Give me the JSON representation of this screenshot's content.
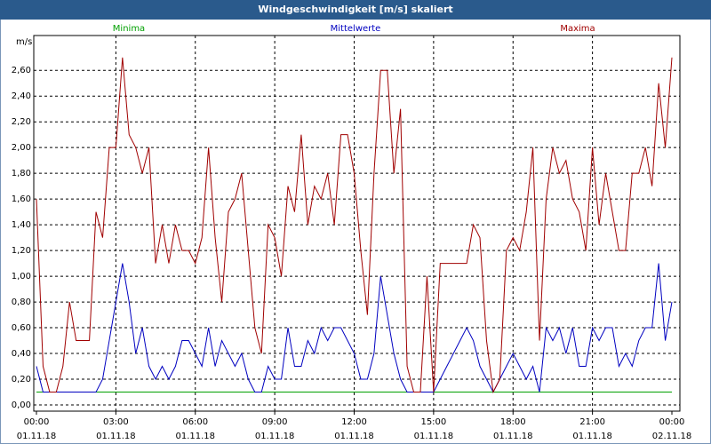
{
  "chart_data": {
    "type": "line",
    "title": "Windgeschwindigkeit [m/s] skaliert",
    "y_unit": "m/s",
    "x": [
      0,
      0.25,
      0.5,
      0.75,
      1,
      1.25,
      1.5,
      1.75,
      2,
      2.25,
      2.5,
      2.75,
      3,
      3.25,
      3.5,
      3.75,
      4,
      4.25,
      4.5,
      4.75,
      5,
      5.25,
      5.5,
      5.75,
      6,
      6.25,
      6.5,
      6.75,
      7,
      7.25,
      7.5,
      7.75,
      8,
      8.25,
      8.5,
      8.75,
      9,
      9.25,
      9.5,
      9.75,
      10,
      10.25,
      10.5,
      10.75,
      11,
      11.25,
      11.5,
      11.75,
      12,
      12.25,
      12.5,
      12.75,
      13,
      13.25,
      13.5,
      13.75,
      14,
      14.25,
      14.5,
      14.75,
      15,
      15.25,
      15.5,
      15.75,
      16,
      16.25,
      16.5,
      16.75,
      17,
      17.25,
      17.5,
      17.75,
      18,
      18.25,
      18.5,
      18.75,
      19,
      19.25,
      19.5,
      19.75,
      20,
      20.25,
      20.5,
      20.75,
      21,
      21.25,
      21.5,
      21.75,
      22,
      22.25,
      22.5,
      22.75,
      23,
      23.25,
      23.5,
      23.75,
      24
    ],
    "series": [
      {
        "name": "Minima",
        "color": "#00a000",
        "values": [
          0.1,
          0.1,
          0.1,
          0.1,
          0.1,
          0.1,
          0.1,
          0.1,
          0.1,
          0.1,
          0.1,
          0.1,
          0.1,
          0.1,
          0.1,
          0.1,
          0.1,
          0.1,
          0.1,
          0.1,
          0.1,
          0.1,
          0.1,
          0.1,
          0.1,
          0.1,
          0.1,
          0.1,
          0.1,
          0.1,
          0.1,
          0.1,
          0.1,
          0.1,
          0.1,
          0.1,
          0.1,
          0.1,
          0.1,
          0.1,
          0.1,
          0.1,
          0.1,
          0.1,
          0.1,
          0.1,
          0.1,
          0.1,
          0.1,
          0.1,
          0.1,
          0.1,
          0.1,
          0.1,
          0.1,
          0.1,
          0.1,
          0.1,
          0.1,
          0.1,
          0.1,
          0.1,
          0.1,
          0.1,
          0.1,
          0.1,
          0.1,
          0.1,
          0.1,
          0.1,
          0.1,
          0.1,
          0.1,
          0.1,
          0.1,
          0.1,
          0.1,
          0.1,
          0.1,
          0.1,
          0.1,
          0.1,
          0.1,
          0.1,
          0.1,
          0.1,
          0.1,
          0.1,
          0.1,
          0.1,
          0.1,
          0.1,
          0.1,
          0.1,
          0.1,
          0.1,
          0.1
        ]
      },
      {
        "name": "Mittelwerte",
        "color": "#0000c0",
        "values": [
          0.3,
          0.1,
          0.1,
          0.1,
          0.1,
          0.1,
          0.1,
          0.1,
          0.1,
          0.1,
          0.2,
          0.5,
          0.8,
          1.1,
          0.8,
          0.4,
          0.6,
          0.3,
          0.2,
          0.3,
          0.2,
          0.3,
          0.5,
          0.5,
          0.4,
          0.3,
          0.6,
          0.3,
          0.5,
          0.4,
          0.3,
          0.4,
          0.2,
          0.1,
          0.1,
          0.3,
          0.2,
          0.2,
          0.6,
          0.3,
          0.3,
          0.5,
          0.4,
          0.6,
          0.5,
          0.6,
          0.6,
          0.5,
          0.4,
          0.2,
          0.2,
          0.4,
          1.0,
          0.7,
          0.4,
          0.2,
          0.1,
          0.1,
          0.1,
          0.1,
          0.1,
          0.2,
          0.3,
          0.4,
          0.5,
          0.6,
          0.5,
          0.3,
          0.2,
          0.1,
          0.2,
          0.3,
          0.4,
          0.3,
          0.2,
          0.3,
          0.1,
          0.6,
          0.5,
          0.6,
          0.4,
          0.6,
          0.3,
          0.3,
          0.6,
          0.5,
          0.6,
          0.6,
          0.3,
          0.4,
          0.3,
          0.5,
          0.6,
          0.6,
          1.1,
          0.5,
          0.8
        ]
      },
      {
        "name": "Maxima",
        "color": "#a00000",
        "values": [
          1.6,
          0.3,
          0.1,
          0.1,
          0.3,
          0.8,
          0.5,
          0.5,
          0.5,
          1.5,
          1.3,
          2.0,
          2.0,
          2.7,
          2.1,
          2.0,
          1.8,
          2.0,
          1.1,
          1.4,
          1.1,
          1.4,
          1.2,
          1.2,
          1.1,
          1.3,
          2.0,
          1.3,
          0.8,
          1.5,
          1.6,
          1.8,
          1.2,
          0.6,
          0.4,
          1.4,
          1.3,
          1.0,
          1.7,
          1.5,
          2.1,
          1.4,
          1.7,
          1.6,
          1.8,
          1.4,
          2.1,
          2.1,
          1.8,
          1.2,
          0.7,
          1.8,
          2.6,
          2.6,
          1.8,
          2.3,
          0.3,
          0.1,
          0.1,
          1.0,
          0.1,
          1.1,
          1.1,
          1.1,
          1.1,
          1.1,
          1.4,
          1.3,
          0.5,
          0.1,
          0.2,
          1.2,
          1.3,
          1.2,
          1.5,
          2.0,
          0.5,
          1.6,
          2.0,
          1.8,
          1.9,
          1.6,
          1.5,
          1.2,
          2.0,
          1.4,
          1.8,
          1.5,
          1.2,
          1.2,
          1.8,
          1.8,
          2.0,
          1.7,
          2.5,
          2.0,
          2.7
        ]
      }
    ],
    "xlim": [
      0,
      24
    ],
    "xticks": [
      {
        "value": 0,
        "label": "00:00"
      },
      {
        "value": 3,
        "label": "03:00"
      },
      {
        "value": 6,
        "label": "06:00"
      },
      {
        "value": 9,
        "label": "09:00"
      },
      {
        "value": 12,
        "label": "12:00"
      },
      {
        "value": 15,
        "label": "15:00"
      },
      {
        "value": 18,
        "label": "18:00"
      },
      {
        "value": 21,
        "label": "21:00"
      },
      {
        "value": 24,
        "label": "00:00"
      }
    ],
    "xtick_dates": [
      "01.11.18",
      "01.11.18",
      "01.11.18",
      "01.11.18",
      "01.11.18",
      "01.11.18",
      "01.11.18",
      "01.11.18",
      "02.11.18"
    ],
    "ylim": [
      0,
      2.85
    ],
    "yticks": [
      {
        "value": 0,
        "label": "0,00"
      },
      {
        "value": 0.2,
        "label": "0,20"
      },
      {
        "value": 0.4,
        "label": "0,40"
      },
      {
        "value": 0.6,
        "label": "0,60"
      },
      {
        "value": 0.8,
        "label": "0,80"
      },
      {
        "value": 1.0,
        "label": "1,00"
      },
      {
        "value": 1.2,
        "label": "1,20"
      },
      {
        "value": 1.4,
        "label": "1,40"
      },
      {
        "value": 1.6,
        "label": "1,60"
      },
      {
        "value": 1.8,
        "label": "1,80"
      },
      {
        "value": 2.0,
        "label": "2,00"
      },
      {
        "value": 2.2,
        "label": "2,20"
      },
      {
        "value": 2.4,
        "label": "2,40"
      },
      {
        "value": 2.6,
        "label": "2,60"
      }
    ],
    "grid": true
  }
}
